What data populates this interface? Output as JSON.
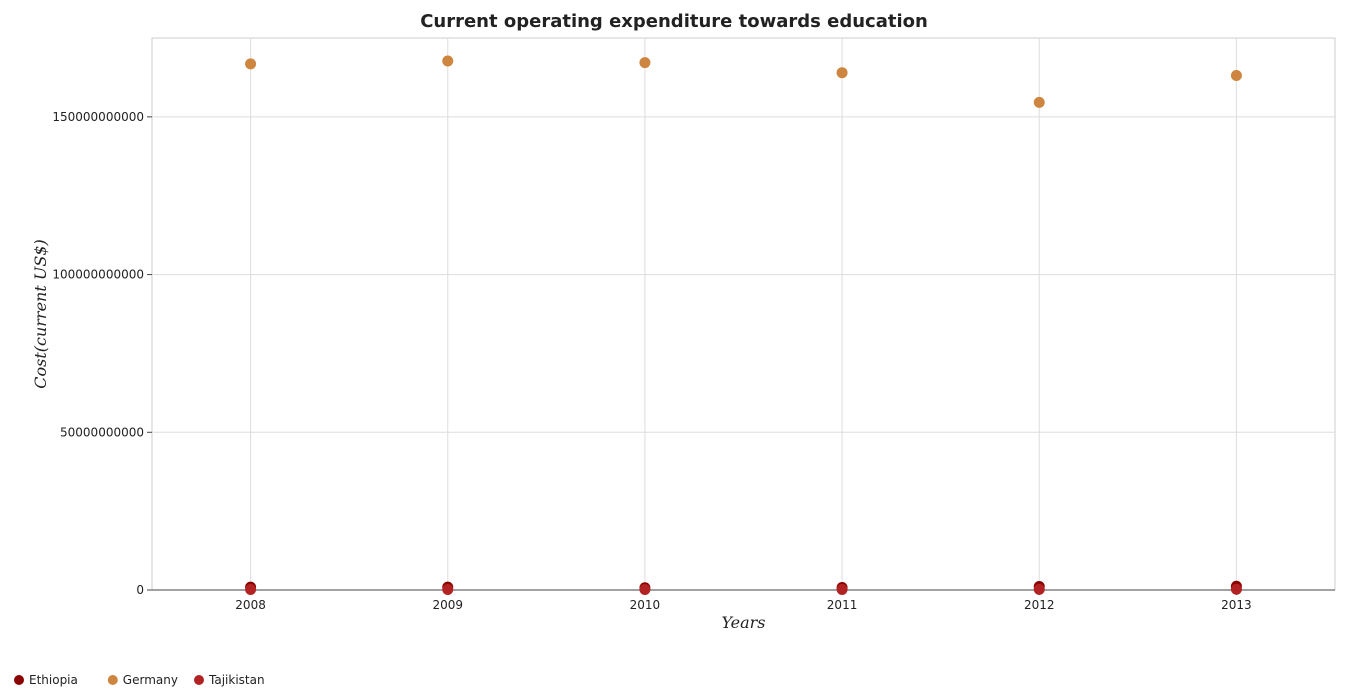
{
  "chart_data": {
    "type": "scatter",
    "title": "Current operating expenditure towards education",
    "xlabel": "Years",
    "ylabel": "Cost(current US$)",
    "categories": [
      "2008",
      "2009",
      "2010",
      "2011",
      "2012",
      "2013"
    ],
    "ylim": [
      0,
      175000000000
    ],
    "yticks": [
      0,
      50000000000,
      100000000000,
      150000000000
    ],
    "ytick_labels": [
      "0",
      "50000000000",
      "100000000000",
      "150000000000"
    ],
    "grid": true,
    "legend_position": "bottom-left",
    "series": [
      {
        "name": "Ethiopia",
        "color": "#8b0000",
        "values": [
          900000000,
          900000000,
          700000000,
          800000000,
          1100000000,
          1200000000
        ]
      },
      {
        "name": "Germany",
        "color": "#cd853f",
        "values": [
          166800000000,
          167700000000,
          167200000000,
          164000000000,
          154600000000,
          163100000000
        ]
      },
      {
        "name": "Tajikistan",
        "color": "#b22222",
        "values": [
          150000000,
          150000000,
          150000000,
          180000000,
          200000000,
          250000000
        ]
      }
    ]
  }
}
